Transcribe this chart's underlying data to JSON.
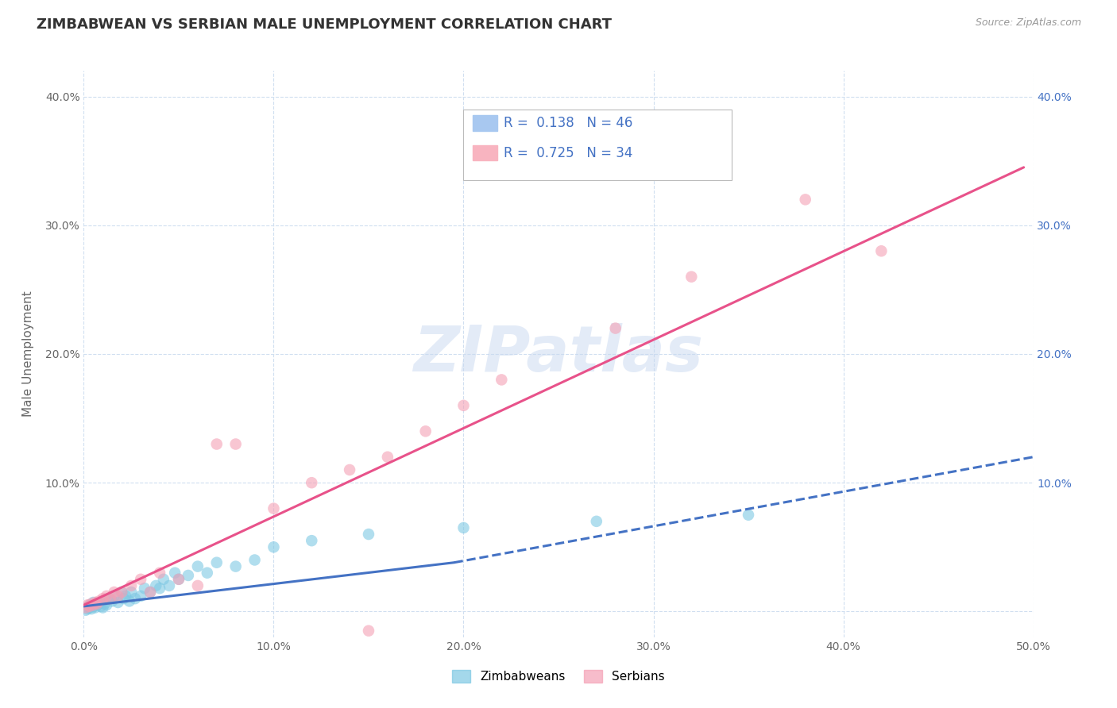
{
  "title": "ZIMBABWEAN VS SERBIAN MALE UNEMPLOYMENT CORRELATION CHART",
  "source": "Source: ZipAtlas.com",
  "ylabel": "Male Unemployment",
  "xlim": [
    0.0,
    0.5
  ],
  "ylim": [
    -0.02,
    0.42
  ],
  "x_ticks": [
    0.0,
    0.1,
    0.2,
    0.3,
    0.4,
    0.5
  ],
  "x_tick_labels": [
    "0.0%",
    "10.0%",
    "20.0%",
    "30.0%",
    "40.0%",
    "50.0%"
  ],
  "y_ticks": [
    0.0,
    0.1,
    0.2,
    0.3,
    0.4
  ],
  "y_tick_labels": [
    "",
    "10.0%",
    "20.0%",
    "30.0%",
    "40.0%"
  ],
  "right_y_ticks": [
    0.1,
    0.2,
    0.3,
    0.4
  ],
  "right_y_tick_labels": [
    "10.0%",
    "20.0%",
    "30.0%",
    "40.0%"
  ],
  "zim_color": "#7ec8e3",
  "ser_color": "#f4a0b5",
  "zim_line_color": "#4472c4",
  "ser_line_color": "#e8528a",
  "watermark": "ZIPatlas",
  "watermark_color": "#c8d8f0",
  "legend_box_color": "#a8c8f0",
  "legend_ser_box_color": "#f8b4c0",
  "legend_text_color": "#4472c4",
  "background_color": "#ffffff",
  "grid_color": "#d0dff0",
  "title_fontsize": 13,
  "axis_label_fontsize": 11,
  "tick_fontsize": 10,
  "zim_scatter_x": [
    0.001,
    0.002,
    0.003,
    0.003,
    0.004,
    0.005,
    0.005,
    0.006,
    0.007,
    0.008,
    0.009,
    0.01,
    0.01,
    0.011,
    0.012,
    0.013,
    0.015,
    0.016,
    0.018,
    0.02,
    0.021,
    0.022,
    0.024,
    0.025,
    0.027,
    0.03,
    0.032,
    0.035,
    0.038,
    0.04,
    0.042,
    0.045,
    0.048,
    0.05,
    0.055,
    0.06,
    0.065,
    0.07,
    0.08,
    0.09,
    0.1,
    0.12,
    0.15,
    0.2,
    0.27,
    0.35
  ],
  "zim_scatter_y": [
    0.001,
    0.002,
    0.003,
    0.005,
    0.002,
    0.004,
    0.007,
    0.003,
    0.005,
    0.006,
    0.004,
    0.003,
    0.008,
    0.006,
    0.005,
    0.01,
    0.008,
    0.012,
    0.007,
    0.015,
    0.01,
    0.012,
    0.008,
    0.015,
    0.01,
    0.012,
    0.018,
    0.015,
    0.02,
    0.018,
    0.025,
    0.02,
    0.03,
    0.025,
    0.028,
    0.035,
    0.03,
    0.038,
    0.035,
    0.04,
    0.05,
    0.055,
    0.06,
    0.065,
    0.07,
    0.075
  ],
  "ser_scatter_x": [
    0.001,
    0.002,
    0.003,
    0.004,
    0.005,
    0.006,
    0.007,
    0.008,
    0.01,
    0.012,
    0.014,
    0.016,
    0.018,
    0.02,
    0.025,
    0.03,
    0.035,
    0.04,
    0.05,
    0.06,
    0.07,
    0.08,
    0.1,
    0.12,
    0.14,
    0.16,
    0.18,
    0.2,
    0.22,
    0.28,
    0.32,
    0.38,
    0.42,
    0.15
  ],
  "ser_scatter_y": [
    0.003,
    0.005,
    0.004,
    0.006,
    0.005,
    0.007,
    0.006,
    0.008,
    0.01,
    0.012,
    0.01,
    0.015,
    0.012,
    0.015,
    0.02,
    0.025,
    0.015,
    0.03,
    0.025,
    0.02,
    0.13,
    0.13,
    0.08,
    0.1,
    0.11,
    0.12,
    0.14,
    0.16,
    0.18,
    0.22,
    0.26,
    0.32,
    0.28,
    -0.015
  ],
  "zim_line_x0": 0.0,
  "zim_line_x_solid_end": 0.195,
  "zim_line_x_dash_end": 0.5,
  "zim_line_y0": 0.004,
  "zim_line_y_solid_end": 0.038,
  "zim_line_y_dash_end": 0.12,
  "ser_line_x0": 0.0,
  "ser_line_x_end": 0.495,
  "ser_line_y0": 0.005,
  "ser_line_y_end": 0.345
}
